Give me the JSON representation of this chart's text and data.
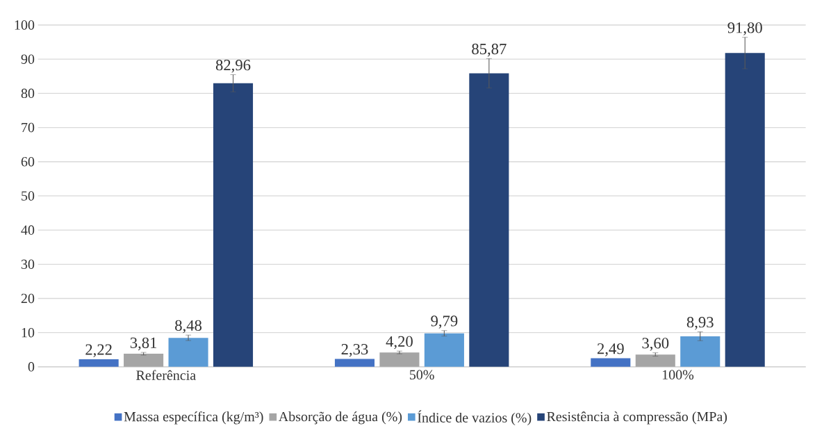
{
  "chart_data": {
    "type": "bar",
    "categories": [
      "Referência",
      "50%",
      "100%"
    ],
    "series": [
      {
        "name": "Massa específica (kg/m³)",
        "color": "#4472c4",
        "values": [
          2.22,
          2.33,
          2.49
        ],
        "value_labels": [
          "2,22",
          "2,33",
          "2,49"
        ]
      },
      {
        "name": "Absorção de água (%)",
        "color": "#a5a5a5",
        "values": [
          3.81,
          4.2,
          3.6
        ],
        "errors": [
          0.4,
          0.4,
          0.5
        ],
        "value_labels": [
          "3,81",
          "4,20",
          "3,60"
        ]
      },
      {
        "name": "Índice de vazios (%)",
        "color": "#5b9bd5",
        "values": [
          8.48,
          9.79,
          8.93
        ],
        "errors": [
          0.8,
          0.8,
          1.3
        ],
        "value_labels": [
          "8,48",
          "9,79",
          "8,93"
        ]
      },
      {
        "name": "Resistência à compressão (MPa)",
        "color": "#264478",
        "values": [
          82.96,
          85.87,
          91.8
        ],
        "errors": [
          2.5,
          4.3,
          4.6
        ],
        "value_labels": [
          "82,96",
          "85,87",
          "91,80"
        ]
      }
    ],
    "ylim": [
      0,
      100
    ],
    "yticks": [
      0,
      10,
      20,
      30,
      40,
      50,
      60,
      70,
      80,
      90,
      100
    ],
    "grid": "y",
    "legend": "bottom"
  }
}
